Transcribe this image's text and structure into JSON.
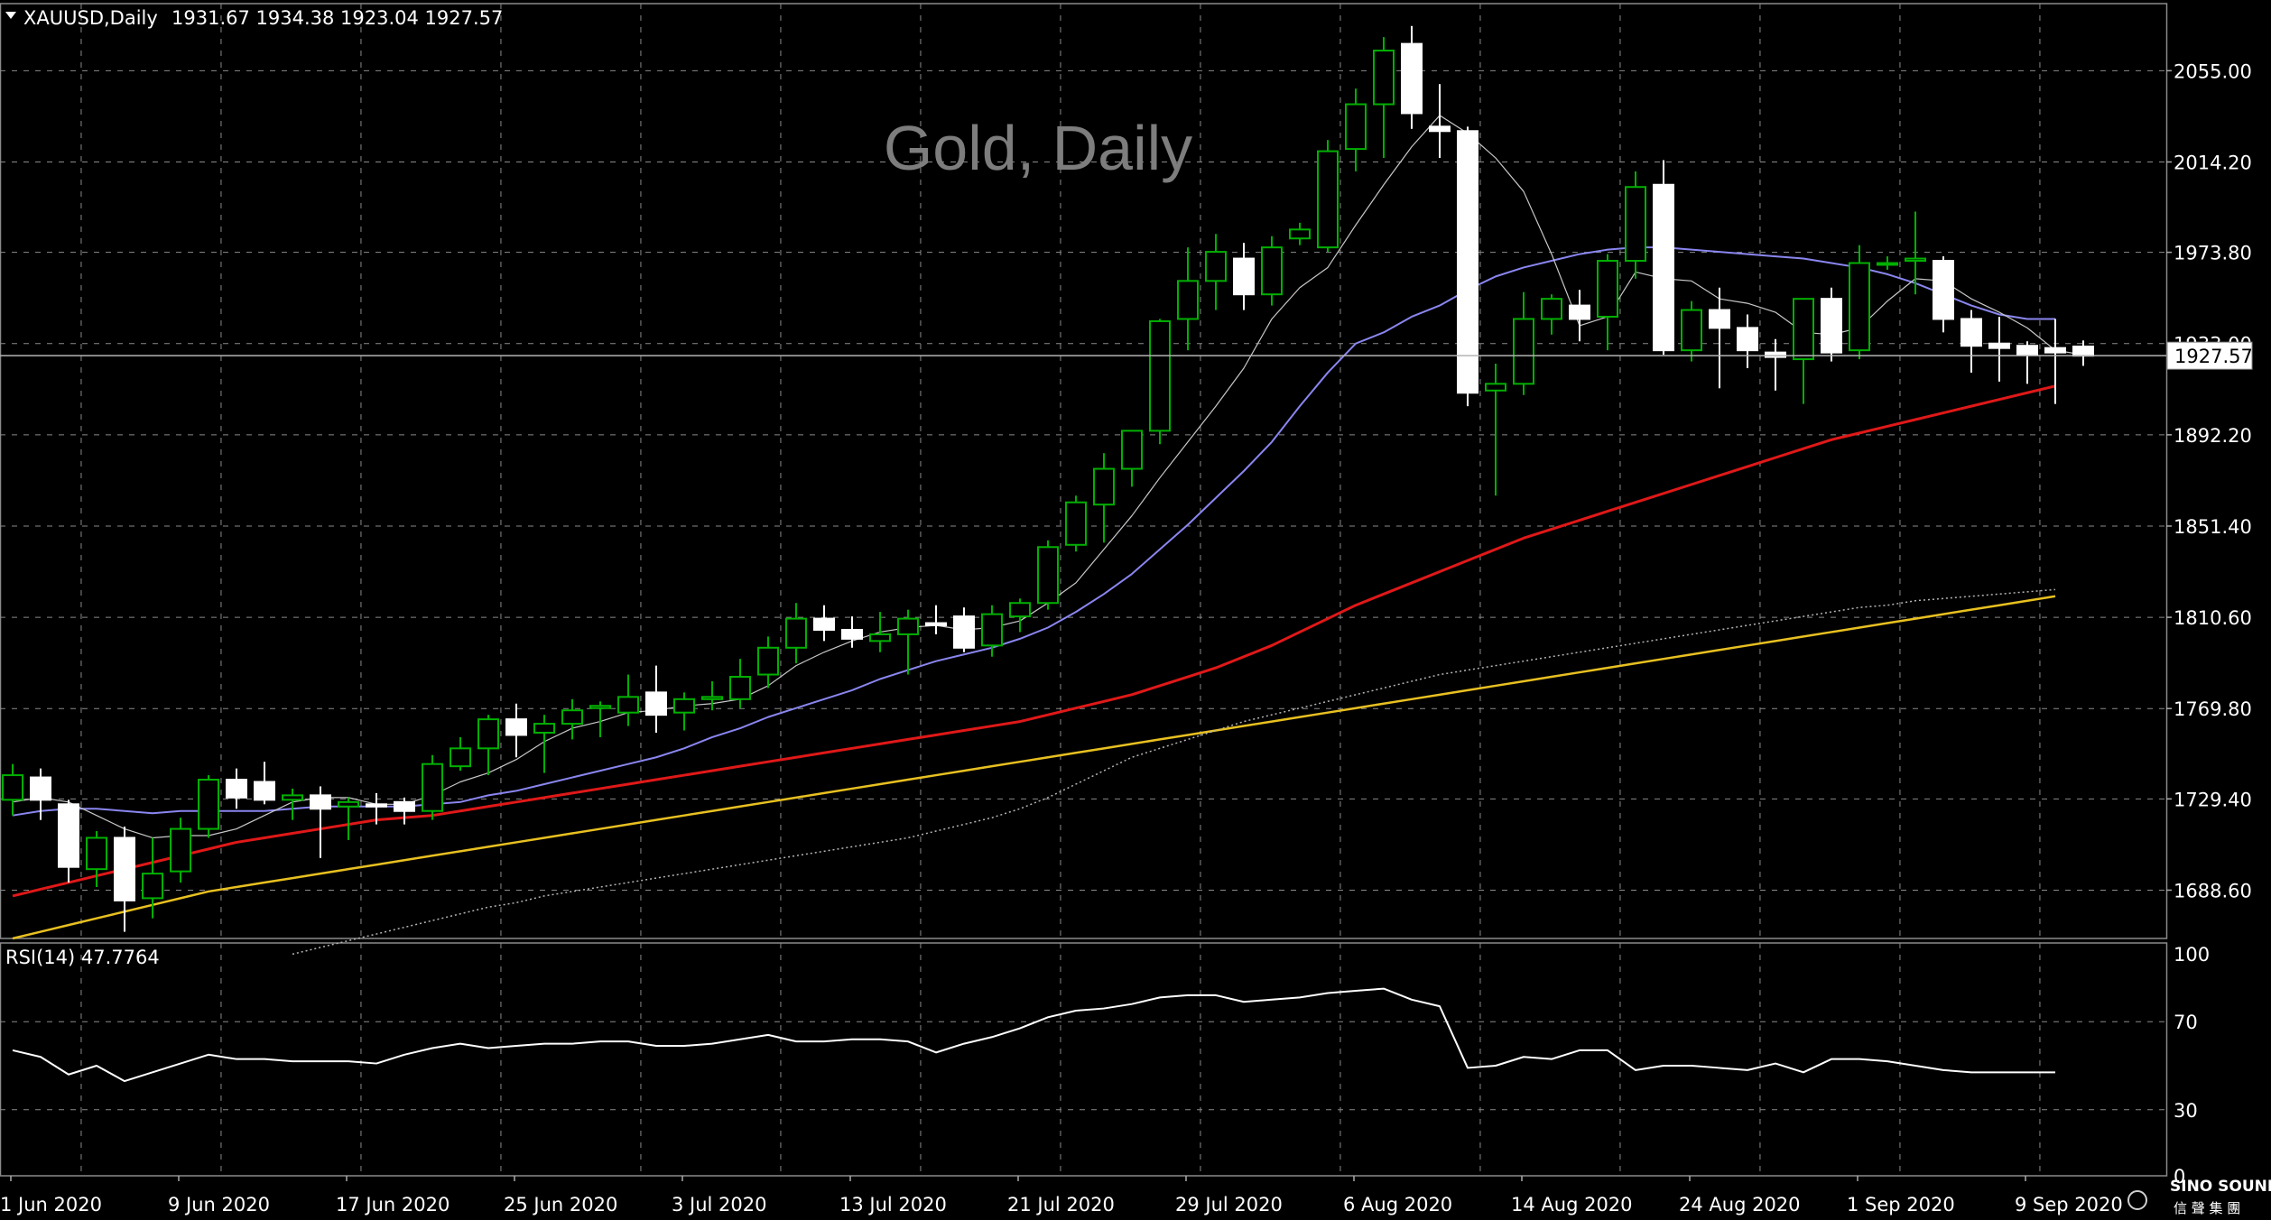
{
  "header": {
    "symbol": "XAUUSD,Daily",
    "ohlc": "1931.67 1934.38 1923.04 1927.57"
  },
  "watermark": {
    "text": "Gold, Daily",
    "logo_text": "SINO SOUND",
    "logo_sub": "信 聲 集 團"
  },
  "colors": {
    "background": "#000000",
    "grid": "#8a8a8a",
    "candle_up": "#00b000",
    "candle_down_fill": "#ffffff",
    "ma_fast": "#c8c8c8",
    "ma_mid": "#8a86f0",
    "ma_slow": "#e01818",
    "ma_long": "#b4b4b4",
    "ma_longest": "#e8c020",
    "rsi_line": "#ffffff"
  },
  "chart_data": {
    "type": "candlestick",
    "price_axis": {
      "ticks": [
        2055.0,
        2014.2,
        1973.8,
        1933.0,
        1892.2,
        1851.4,
        1810.6,
        1769.8,
        1729.4,
        1688.6
      ],
      "tick_labels": [
        "2055.00",
        "2014.20",
        "1973.80",
        "1933.00",
        "1892.20",
        "1851.40",
        "1810.60",
        "1769.80",
        "1729.40",
        "1688.60"
      ],
      "range": [
        1667,
        2085
      ]
    },
    "current_price": {
      "value": 1927.57,
      "label": "1927.57"
    },
    "x_tick_labels": [
      {
        "index": 0,
        "label": "1 Jun 2020"
      },
      {
        "index": 6,
        "label": "9 Jun 2020"
      },
      {
        "index": 12,
        "label": "17 Jun 2020"
      },
      {
        "index": 18,
        "label": "25 Jun 2020"
      },
      {
        "index": 24,
        "label": "3 Jul 2020"
      },
      {
        "index": 30,
        "label": "13 Jul 2020"
      },
      {
        "index": 36,
        "label": "21 Jul 2020"
      },
      {
        "index": 42,
        "label": "29 Jul 2020"
      },
      {
        "index": 48,
        "label": "6 Aug 2020"
      },
      {
        "index": 54,
        "label": "14 Aug 2020"
      },
      {
        "index": 60,
        "label": "24 Aug 2020"
      },
      {
        "index": 66,
        "label": "1 Sep 2020"
      },
      {
        "index": 72,
        "label": "9 Sep 2020"
      }
    ],
    "candles": [
      {
        "o": 1729,
        "h": 1745,
        "l": 1722,
        "c": 1740
      },
      {
        "o": 1739,
        "h": 1743,
        "l": 1720,
        "c": 1729
      },
      {
        "o": 1727,
        "h": 1729,
        "l": 1692,
        "c": 1699
      },
      {
        "o": 1698,
        "h": 1715,
        "l": 1690,
        "c": 1712
      },
      {
        "o": 1712,
        "h": 1717,
        "l": 1670,
        "c": 1684
      },
      {
        "o": 1685,
        "h": 1712,
        "l": 1676,
        "c": 1696
      },
      {
        "o": 1697,
        "h": 1721,
        "l": 1692,
        "c": 1716
      },
      {
        "o": 1716,
        "h": 1740,
        "l": 1712,
        "c": 1738
      },
      {
        "o": 1738,
        "h": 1743,
        "l": 1725,
        "c": 1730
      },
      {
        "o": 1737,
        "h": 1746,
        "l": 1727,
        "c": 1729
      },
      {
        "o": 1729,
        "h": 1734,
        "l": 1720,
        "c": 1731
      },
      {
        "o": 1731,
        "h": 1735,
        "l": 1703,
        "c": 1725
      },
      {
        "o": 1726,
        "h": 1730,
        "l": 1711,
        "c": 1728
      },
      {
        "o": 1727,
        "h": 1732,
        "l": 1718,
        "c": 1726
      },
      {
        "o": 1728,
        "h": 1730,
        "l": 1718,
        "c": 1724
      },
      {
        "o": 1724,
        "h": 1749,
        "l": 1720,
        "c": 1745
      },
      {
        "o": 1744,
        "h": 1757,
        "l": 1742,
        "c": 1752
      },
      {
        "o": 1752,
        "h": 1767,
        "l": 1740,
        "c": 1765
      },
      {
        "o": 1765,
        "h": 1772,
        "l": 1748,
        "c": 1758
      },
      {
        "o": 1759,
        "h": 1767,
        "l": 1741,
        "c": 1763
      },
      {
        "o": 1763,
        "h": 1774,
        "l": 1756,
        "c": 1769
      },
      {
        "o": 1770,
        "h": 1773,
        "l": 1757,
        "c": 1771
      },
      {
        "o": 1768,
        "h": 1785,
        "l": 1762,
        "c": 1775
      },
      {
        "o": 1777,
        "h": 1789,
        "l": 1759,
        "c": 1767
      },
      {
        "o": 1768,
        "h": 1777,
        "l": 1760,
        "c": 1774
      },
      {
        "o": 1774,
        "h": 1782,
        "l": 1769,
        "c": 1775
      },
      {
        "o": 1774,
        "h": 1792,
        "l": 1770,
        "c": 1784
      },
      {
        "o": 1785,
        "h": 1802,
        "l": 1779,
        "c": 1797
      },
      {
        "o": 1797,
        "h": 1817,
        "l": 1790,
        "c": 1810
      },
      {
        "o": 1810,
        "h": 1816,
        "l": 1800,
        "c": 1805
      },
      {
        "o": 1805,
        "h": 1811,
        "l": 1797,
        "c": 1801
      },
      {
        "o": 1800,
        "h": 1813,
        "l": 1795,
        "c": 1803
      },
      {
        "o": 1803,
        "h": 1814,
        "l": 1785,
        "c": 1810
      },
      {
        "o": 1808,
        "h": 1816,
        "l": 1803,
        "c": 1807
      },
      {
        "o": 1811,
        "h": 1815,
        "l": 1795,
        "c": 1797
      },
      {
        "o": 1798,
        "h": 1816,
        "l": 1793,
        "c": 1812
      },
      {
        "o": 1811,
        "h": 1819,
        "l": 1804,
        "c": 1817
      },
      {
        "o": 1817,
        "h": 1845,
        "l": 1814,
        "c": 1842
      },
      {
        "o": 1843,
        "h": 1865,
        "l": 1840,
        "c": 1862
      },
      {
        "o": 1861,
        "h": 1884,
        "l": 1844,
        "c": 1877
      },
      {
        "o": 1877,
        "h": 1893,
        "l": 1869,
        "c": 1894
      },
      {
        "o": 1894,
        "h": 1944,
        "l": 1888,
        "c": 1943
      },
      {
        "o": 1944,
        "h": 1976,
        "l": 1930,
        "c": 1961
      },
      {
        "o": 1961,
        "h": 1982,
        "l": 1948,
        "c": 1974
      },
      {
        "o": 1971,
        "h": 1978,
        "l": 1948,
        "c": 1955
      },
      {
        "o": 1955,
        "h": 1981,
        "l": 1950,
        "c": 1976
      },
      {
        "o": 1980,
        "h": 1987,
        "l": 1977,
        "c": 1984
      },
      {
        "o": 1976,
        "h": 2024,
        "l": 1974,
        "c": 2019
      },
      {
        "o": 2020,
        "h": 2047,
        "l": 2010,
        "c": 2040
      },
      {
        "o": 2040,
        "h": 2070,
        "l": 2016,
        "c": 2064
      },
      {
        "o": 2067,
        "h": 2075,
        "l": 2029,
        "c": 2036
      },
      {
        "o": 2030,
        "h": 2049,
        "l": 2016,
        "c": 2028
      },
      {
        "o": 2028,
        "h": 2030,
        "l": 1905,
        "c": 1911
      },
      {
        "o": 1912,
        "h": 1924,
        "l": 1865,
        "c": 1915
      },
      {
        "o": 1915,
        "h": 1956,
        "l": 1910,
        "c": 1944
      },
      {
        "o": 1944,
        "h": 1955,
        "l": 1937,
        "c": 1953
      },
      {
        "o": 1950,
        "h": 1957,
        "l": 1934,
        "c": 1944
      },
      {
        "o": 1945,
        "h": 1973,
        "l": 1930,
        "c": 1970
      },
      {
        "o": 1970,
        "h": 2010,
        "l": 1962,
        "c": 2003
      },
      {
        "o": 2004,
        "h": 2015,
        "l": 1928,
        "c": 1930
      },
      {
        "o": 1930,
        "h": 1952,
        "l": 1925,
        "c": 1948
      },
      {
        "o": 1948,
        "h": 1958,
        "l": 1913,
        "c": 1940
      },
      {
        "o": 1940,
        "h": 1946,
        "l": 1922,
        "c": 1930
      },
      {
        "o": 1929,
        "h": 1935,
        "l": 1912,
        "c": 1927
      },
      {
        "o": 1926,
        "h": 1952,
        "l": 1906,
        "c": 1953
      },
      {
        "o": 1953,
        "h": 1958,
        "l": 1925,
        "c": 1929
      },
      {
        "o": 1930,
        "h": 1977,
        "l": 1926,
        "c": 1969
      },
      {
        "o": 1969,
        "h": 1972,
        "l": 1966,
        "c": 1969
      },
      {
        "o": 1970,
        "h": 1992,
        "l": 1955,
        "c": 1971
      },
      {
        "o": 1970,
        "h": 1972,
        "l": 1938,
        "c": 1944
      },
      {
        "o": 1944,
        "h": 1948,
        "l": 1920,
        "c": 1932
      },
      {
        "o": 1933,
        "h": 1945,
        "l": 1916,
        "c": 1931
      },
      {
        "o": 1932,
        "h": 1934,
        "l": 1915,
        "c": 1928
      },
      {
        "o": 1931,
        "h": 1944,
        "l": 1906,
        "c": 1929
      },
      {
        "o": 1931.67,
        "h": 1934.38,
        "l": 1923.04,
        "c": 1927.57
      }
    ],
    "ma_fast_values": [
      1728,
      1730,
      1728,
      1722,
      1716,
      1712,
      1713,
      1713,
      1716,
      1722,
      1728,
      1730,
      1730,
      1727,
      1727,
      1731,
      1737,
      1741,
      1747,
      1755,
      1761,
      1764,
      1768,
      1769,
      1771,
      1772,
      1774,
      1780,
      1789,
      1795,
      1800,
      1804,
      1806,
      1807,
      1805,
      1806,
      1809,
      1817,
      1826,
      1841,
      1856,
      1873,
      1889,
      1905,
      1922,
      1944,
      1958,
      1967,
      1986,
      2004,
      2021,
      2035,
      2027,
      2016,
      2001,
      1973,
      1941,
      1945,
      1965,
      1962,
      1961,
      1953,
      1951,
      1947,
      1938,
      1937,
      1940,
      1952,
      1962,
      1961,
      1953,
      1947,
      1940,
      1930,
      1928
    ],
    "ma_mid_values": [
      1722,
      1724,
      1725,
      1725,
      1724,
      1723,
      1724,
      1724,
      1724,
      1724,
      1725,
      1726,
      1726,
      1726,
      1726,
      1727,
      1728,
      1731,
      1733,
      1736,
      1739,
      1742,
      1745,
      1748,
      1752,
      1757,
      1761,
      1766,
      1770,
      1774,
      1778,
      1783,
      1787,
      1791,
      1794,
      1797,
      1801,
      1806,
      1813,
      1821,
      1830,
      1841,
      1852,
      1864,
      1876,
      1889,
      1905,
      1920,
      1933,
      1938,
      1945,
      1950,
      1957,
      1963,
      1967,
      1970,
      1973,
      1975,
      1976,
      1976,
      1975,
      1974,
      1973,
      1972,
      1971,
      1969,
      1967,
      1964,
      1960,
      1955,
      1950,
      1946,
      1944,
      1944
    ],
    "ma_slow_values": [
      1686,
      1689,
      1692,
      1695,
      1698,
      1701,
      1704,
      1707,
      1710,
      1712,
      1714,
      1716,
      1718,
      1720,
      1721,
      1722,
      1724,
      1726,
      1728,
      1730,
      1732,
      1734,
      1736,
      1738,
      1740,
      1742,
      1744,
      1746,
      1748,
      1750,
      1752,
      1754,
      1756,
      1758,
      1760,
      1762,
      1764,
      1767,
      1770,
      1773,
      1776,
      1780,
      1784,
      1788,
      1793,
      1798,
      1804,
      1810,
      1816,
      1821,
      1826,
      1831,
      1836,
      1841,
      1846,
      1850,
      1854,
      1858,
      1862,
      1866,
      1870,
      1874,
      1878,
      1882,
      1886,
      1890,
      1893,
      1896,
      1899,
      1902,
      1905,
      1908,
      1911,
      1914
    ],
    "ma_long_values": [
      1660,
      1663,
      1666,
      1669,
      1672,
      1675,
      1678,
      1681,
      1683,
      1686,
      1688,
      1690,
      1692,
      1694,
      1696,
      1698,
      1700,
      1702,
      1704,
      1706,
      1708,
      1710,
      1712,
      1715,
      1718,
      1721,
      1725,
      1730,
      1736,
      1742,
      1748,
      1752,
      1756,
      1760,
      1764,
      1767,
      1770,
      1773,
      1776,
      1779,
      1782,
      1785,
      1787,
      1789,
      1791,
      1793,
      1795,
      1797,
      1799,
      1801,
      1803,
      1805,
      1807,
      1809,
      1811,
      1813,
      1815,
      1816,
      1818,
      1819,
      1820,
      1821,
      1822,
      1823
    ],
    "ma_longest_values": [
      1667,
      1670,
      1673,
      1676,
      1679,
      1682,
      1685,
      1688,
      1690,
      1692,
      1694,
      1696,
      1698,
      1700,
      1702,
      1704,
      1706,
      1708,
      1710,
      1712,
      1714,
      1716,
      1718,
      1720,
      1722,
      1724,
      1726,
      1728,
      1730,
      1732,
      1734,
      1736,
      1738,
      1740,
      1742,
      1744,
      1746,
      1748,
      1750,
      1752,
      1754,
      1756,
      1758,
      1760,
      1762,
      1764,
      1766,
      1768,
      1770,
      1772,
      1774,
      1776,
      1778,
      1780,
      1782,
      1784,
      1786,
      1788,
      1790,
      1792,
      1794,
      1796,
      1798,
      1800,
      1802,
      1804,
      1806,
      1808,
      1810,
      1812,
      1814,
      1816,
      1818,
      1820
    ],
    "rsi": {
      "label": "RSI(14) 47.7764",
      "period": 14,
      "value": 47.7764,
      "range": [
        0,
        100
      ],
      "ticks": [
        100,
        70,
        30,
        0
      ],
      "tick_labels": [
        "100",
        "70",
        "30",
        "0"
      ],
      "values": [
        57,
        54,
        46,
        50,
        43,
        47,
        51,
        55,
        53,
        53,
        52,
        52,
        52,
        51,
        55,
        58,
        60,
        58,
        59,
        60,
        60,
        61,
        61,
        59,
        59,
        60,
        62,
        64,
        61,
        61,
        62,
        62,
        61,
        56,
        60,
        63,
        67,
        72,
        75,
        76,
        78,
        81,
        82,
        82,
        79,
        80,
        81,
        83,
        84,
        85,
        80,
        77,
        49,
        50,
        54,
        53,
        57,
        57,
        48,
        50,
        50,
        49,
        48,
        51,
        47,
        53,
        53,
        52,
        50,
        48,
        47,
        47,
        47,
        47
      ]
    }
  }
}
